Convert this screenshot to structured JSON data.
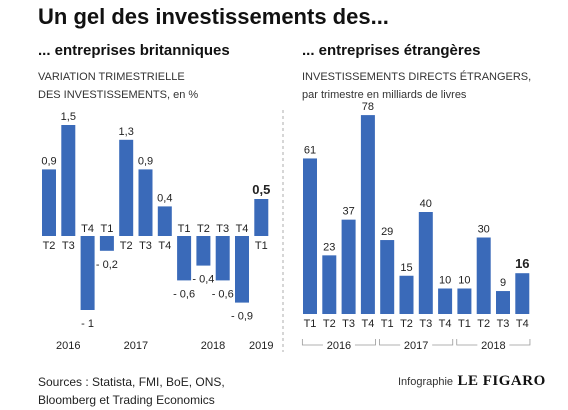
{
  "title": "Un gel des investissements des...",
  "left": {
    "subtitle": "... entreprises britanniques",
    "desc_line1": "VARIATION TRIMESTRIELLE",
    "desc_line2": "DES INVESTISSEMENTS, en %"
  },
  "right": {
    "subtitle": "... entreprises étrangères",
    "desc_line1": "INVESTISSEMENTS DIRECTS ÉTRANGERS,",
    "desc_line2": "par trimestre en milliards de livres"
  },
  "footer": {
    "sources_line1": "Sources : Statista, FMI, BoE, ONS,",
    "sources_line2": "Bloomberg et Trading Economics",
    "credit_label": "Infographie",
    "credit_brand": "LE FIGARO"
  },
  "colors": {
    "bar": "#3a6ab9",
    "text": "#222222",
    "divider": "#999999"
  },
  "chart_data": [
    {
      "type": "bar",
      "title": "... entreprises britanniques",
      "ylabel": "VARIATION TRIMESTRIELLE DES INVESTISSEMENTS, en %",
      "categories": [
        "T2",
        "T3",
        "T4",
        "T1",
        "T2",
        "T3",
        "T4",
        "T1",
        "T2",
        "T3",
        "T4",
        "T1"
      ],
      "value_labels": [
        "0,9",
        "1,5",
        "- 1",
        "- 0,2",
        "1,3",
        "0,9",
        "0,4",
        "- 0,6",
        "- 0,4",
        "- 0,6",
        "- 0,9",
        "0,5"
      ],
      "values": [
        0.9,
        1.5,
        -1,
        -0.2,
        1.3,
        0.9,
        0.4,
        -0.6,
        -0.4,
        -0.6,
        -0.9,
        0.5
      ],
      "highlight_index": 11,
      "years": [
        {
          "label": "2016",
          "from": 0,
          "to": 2
        },
        {
          "label": "2017",
          "from": 3,
          "to": 6
        },
        {
          "label": "2018",
          "from": 7,
          "to": 10
        },
        {
          "label": "2019",
          "from": 11,
          "to": 11
        }
      ]
    },
    {
      "type": "bar",
      "title": "... entreprises étrangères",
      "ylabel": "INVESTISSEMENTS DIRECTS ÉTRANGERS, par trimestre en milliards de livres",
      "categories": [
        "T1",
        "T2",
        "T3",
        "T4",
        "T1",
        "T2",
        "T3",
        "T4",
        "T1",
        "T2",
        "T3",
        "T4"
      ],
      "value_labels": [
        "61",
        "23",
        "37",
        "78",
        "29",
        "15",
        "40",
        "10",
        "10",
        "30",
        "9",
        "16"
      ],
      "values": [
        61,
        23,
        37,
        78,
        29,
        15,
        40,
        10,
        10,
        30,
        9,
        16
      ],
      "highlight_index": 11,
      "years": [
        {
          "label": "2016",
          "from": 0,
          "to": 3
        },
        {
          "label": "2017",
          "from": 4,
          "to": 7
        },
        {
          "label": "2018",
          "from": 8,
          "to": 11
        }
      ]
    }
  ]
}
